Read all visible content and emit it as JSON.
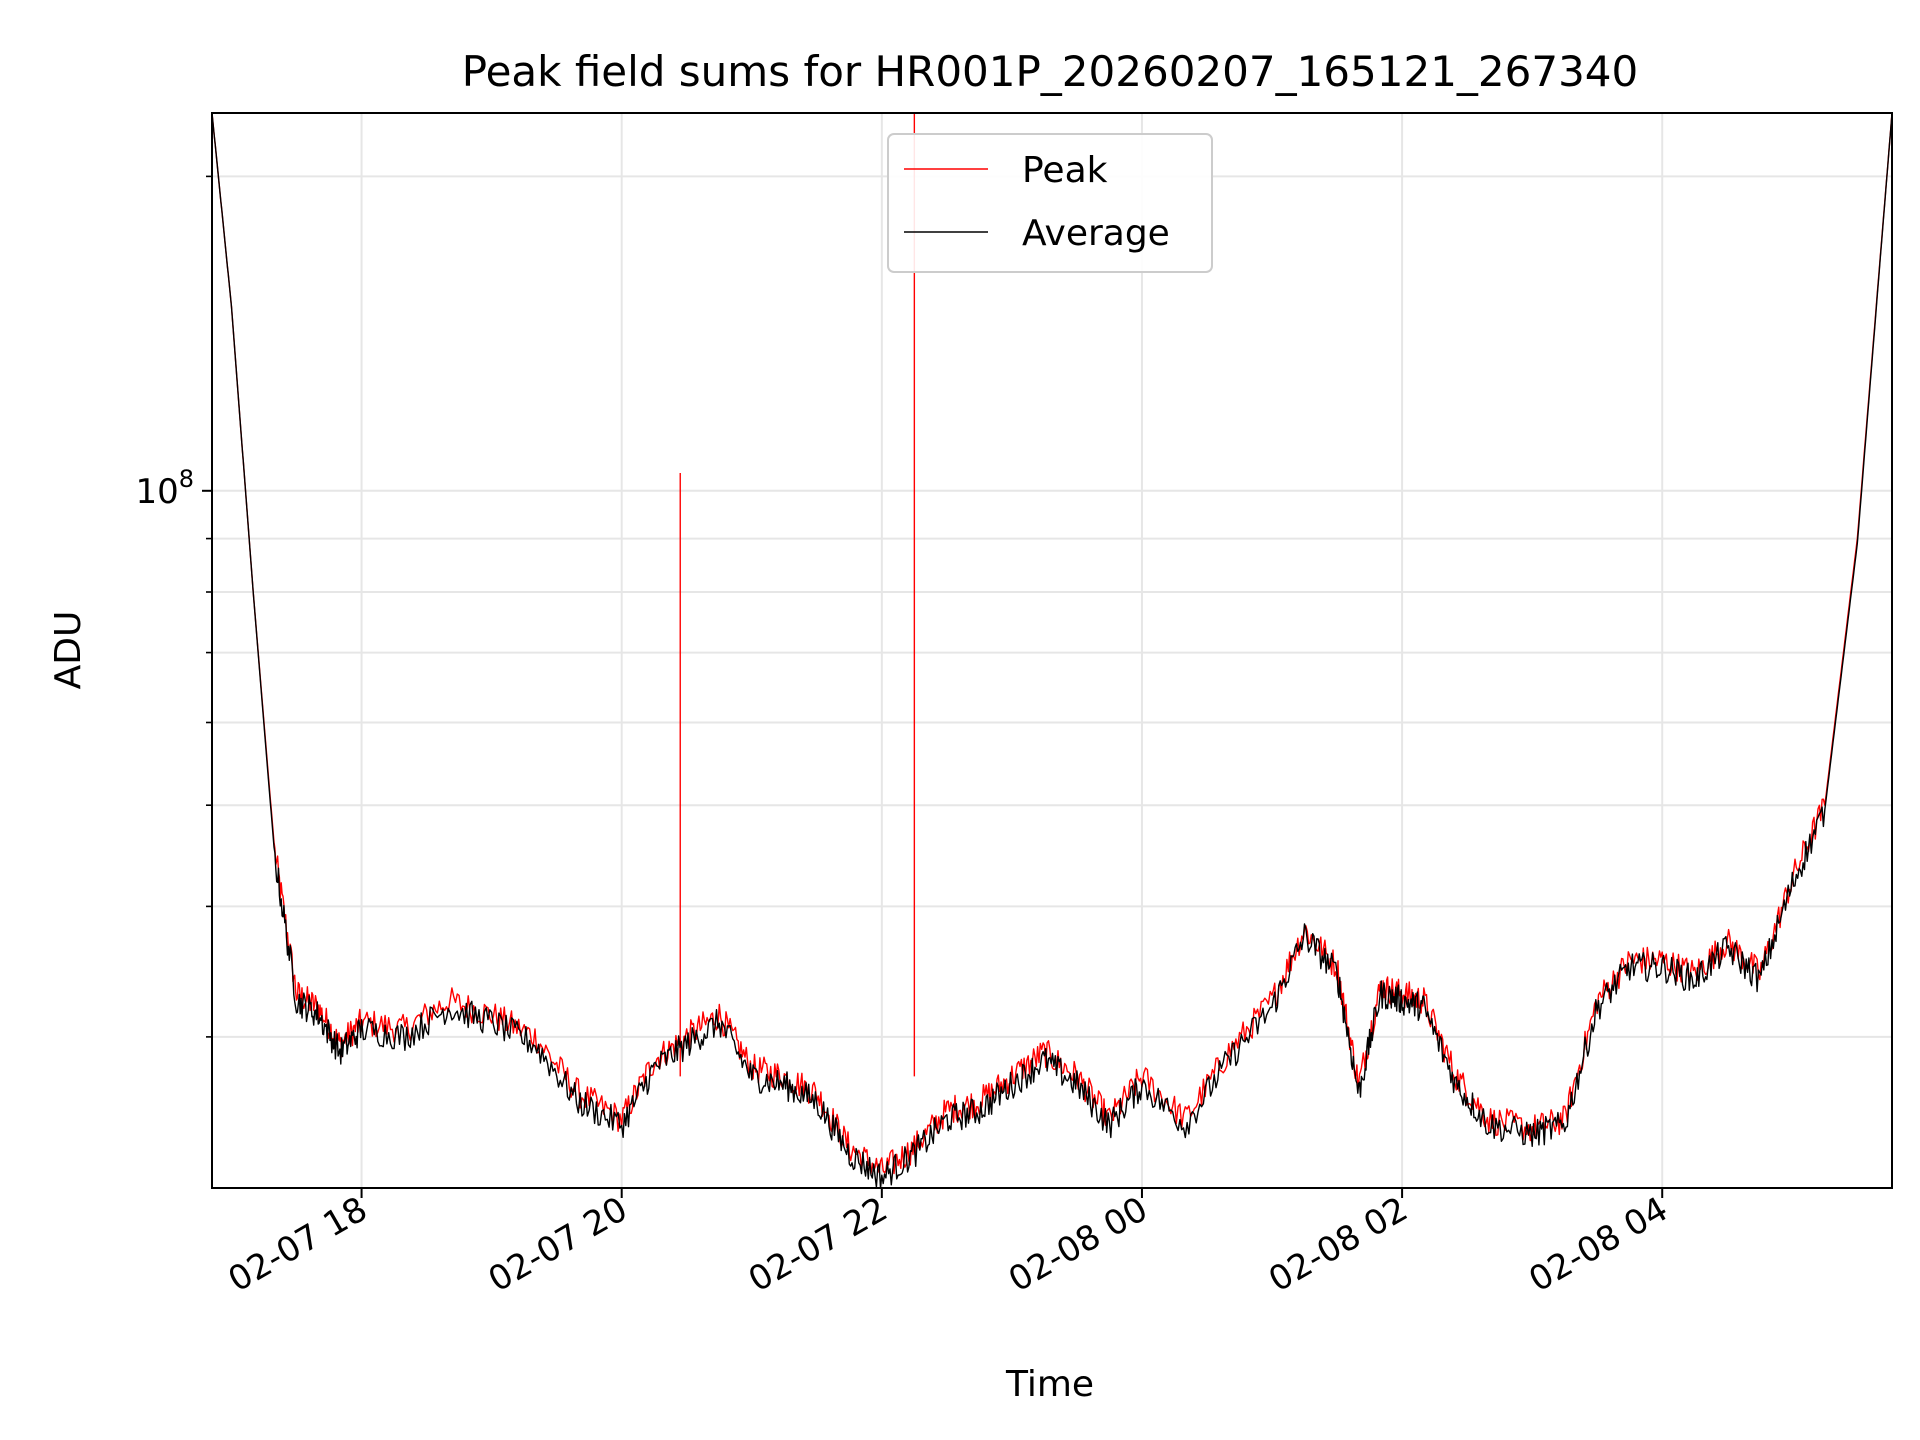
{
  "chart_data": {
    "type": "line",
    "title": "Peak field sums for HR001P_20260207_165121_267340",
    "xlabel": "Time",
    "ylabel": "ADU",
    "y_scale": "log",
    "ylim": [
      21500000,
      230000000
    ],
    "xlim": [
      "2026-02-07 16:51",
      "2026-02-08 05:46"
    ],
    "x_ticks": [
      "2026-02-07 18:00",
      "2026-02-07 20:00",
      "2026-02-07 22:00",
      "2026-02-08 00:00",
      "2026-02-08 02:00",
      "2026-02-08 04:00"
    ],
    "x_tick_labels": [
      "02-07 18",
      "02-07 20",
      "02-07 22",
      "02-08 00",
      "02-08 02",
      "02-08 04"
    ],
    "y_major_tick": 100000000,
    "y_major_tick_label": {
      "base": "10",
      "exponent": "8"
    },
    "grid": true,
    "legend_position": "top-center",
    "series": [
      {
        "name": "Peak",
        "color": "#ff0000",
        "points": [
          [
            "2026-02-07 16:51",
            230000000
          ],
          [
            "2026-02-07 17:00",
            150000000
          ],
          [
            "2026-02-07 17:10",
            80000000
          ],
          [
            "2026-02-07 17:20",
            45000000
          ],
          [
            "2026-02-07 17:30",
            33000000
          ],
          [
            "2026-02-07 17:40",
            32000000
          ],
          [
            "2026-02-07 17:50",
            29500000
          ],
          [
            "2026-02-07 18:00",
            31000000
          ],
          [
            "2026-02-07 18:20",
            30500000
          ],
          [
            "2026-02-07 18:40",
            32500000
          ],
          [
            "2026-02-07 19:00",
            31500000
          ],
          [
            "2026-02-07 19:20",
            30000000
          ],
          [
            "2026-02-07 19:40",
            26500000
          ],
          [
            "2026-02-07 20:00",
            25000000
          ],
          [
            "2026-02-07 20:15",
            28500000
          ],
          [
            "2026-02-07 20:30",
            30000000
          ],
          [
            "2026-02-07 20:45",
            31500000
          ],
          [
            "2026-02-07 21:00",
            28000000
          ],
          [
            "2026-02-07 21:15",
            27500000
          ],
          [
            "2026-02-07 21:30",
            26500000
          ],
          [
            "2026-02-07 21:45",
            23500000
          ],
          [
            "2026-02-07 22:00",
            22300000
          ],
          [
            "2026-02-07 22:15",
            23500000
          ],
          [
            "2026-02-07 22:30",
            25500000
          ],
          [
            "2026-02-07 22:45",
            26000000
          ],
          [
            "2026-02-07 23:00",
            27500000
          ],
          [
            "2026-02-07 23:15",
            29000000
          ],
          [
            "2026-02-07 23:30",
            27500000
          ],
          [
            "2026-02-07 23:45",
            25000000
          ],
          [
            "2026-02-08 00:00",
            27500000
          ],
          [
            "2026-02-08 00:20",
            25000000
          ],
          [
            "2026-02-08 00:40",
            29000000
          ],
          [
            "2026-02-08 01:00",
            32500000
          ],
          [
            "2026-02-08 01:15",
            38000000
          ],
          [
            "2026-02-08 01:30",
            35000000
          ],
          [
            "2026-02-08 01:40",
            27000000
          ],
          [
            "2026-02-08 01:50",
            33500000
          ],
          [
            "2026-02-08 02:00",
            33000000
          ],
          [
            "2026-02-08 02:10",
            32500000
          ],
          [
            "2026-02-08 02:25",
            27500000
          ],
          [
            "2026-02-08 02:40",
            25000000
          ],
          [
            "2026-02-08 03:00",
            24500000
          ],
          [
            "2026-02-08 03:15",
            25000000
          ],
          [
            "2026-02-08 03:30",
            32500000
          ],
          [
            "2026-02-08 03:45",
            35500000
          ],
          [
            "2026-02-08 04:00",
            35500000
          ],
          [
            "2026-02-08 04:15",
            34500000
          ],
          [
            "2026-02-08 04:30",
            37000000
          ],
          [
            "2026-02-08 04:45",
            34500000
          ],
          [
            "2026-02-08 05:00",
            42500000
          ],
          [
            "2026-02-08 05:15",
            50000000
          ],
          [
            "2026-02-08 05:30",
            90000000
          ],
          [
            "2026-02-08 05:46",
            230000000
          ]
        ],
        "spikes": [
          [
            "2026-02-07 20:27",
            104000000
          ],
          [
            "2026-02-07 22:15",
            230000000
          ]
        ]
      },
      {
        "name": "Average",
        "color": "#000000",
        "points": [
          [
            "2026-02-07 16:51",
            230000000
          ],
          [
            "2026-02-07 17:00",
            150000000
          ],
          [
            "2026-02-07 17:10",
            80000000
          ],
          [
            "2026-02-07 17:20",
            44500000
          ],
          [
            "2026-02-07 17:30",
            32500000
          ],
          [
            "2026-02-07 17:40",
            31500000
          ],
          [
            "2026-02-07 17:50",
            29000000
          ],
          [
            "2026-02-07 18:00",
            30500000
          ],
          [
            "2026-02-07 18:20",
            30000000
          ],
          [
            "2026-02-07 18:40",
            32000000
          ],
          [
            "2026-02-07 19:00",
            31000000
          ],
          [
            "2026-02-07 19:20",
            29500000
          ],
          [
            "2026-02-07 19:40",
            26000000
          ],
          [
            "2026-02-07 20:00",
            24700000
          ],
          [
            "2026-02-07 20:15",
            28000000
          ],
          [
            "2026-02-07 20:30",
            29500000
          ],
          [
            "2026-02-07 20:45",
            31000000
          ],
          [
            "2026-02-07 21:00",
            27500000
          ],
          [
            "2026-02-07 21:15",
            27000000
          ],
          [
            "2026-02-07 21:30",
            26000000
          ],
          [
            "2026-02-07 21:45",
            23200000
          ],
          [
            "2026-02-07 22:00",
            22000000
          ],
          [
            "2026-02-07 22:15",
            23200000
          ],
          [
            "2026-02-07 22:30",
            25000000
          ],
          [
            "2026-02-07 22:45",
            25500000
          ],
          [
            "2026-02-07 23:00",
            27000000
          ],
          [
            "2026-02-07 23:15",
            28500000
          ],
          [
            "2026-02-07 23:30",
            27000000
          ],
          [
            "2026-02-07 23:45",
            24700000
          ],
          [
            "2026-02-08 00:00",
            27000000
          ],
          [
            "2026-02-08 00:20",
            24700000
          ],
          [
            "2026-02-08 00:40",
            28500000
          ],
          [
            "2026-02-08 01:00",
            32000000
          ],
          [
            "2026-02-08 01:15",
            37500000
          ],
          [
            "2026-02-08 01:30",
            34500000
          ],
          [
            "2026-02-08 01:40",
            26500000
          ],
          [
            "2026-02-08 01:50",
            33000000
          ],
          [
            "2026-02-08 02:00",
            32500000
          ],
          [
            "2026-02-08 02:10",
            32000000
          ],
          [
            "2026-02-08 02:25",
            27000000
          ],
          [
            "2026-02-08 02:40",
            24700000
          ],
          [
            "2026-02-08 03:00",
            24200000
          ],
          [
            "2026-02-08 03:15",
            24700000
          ],
          [
            "2026-02-08 03:30",
            32000000
          ],
          [
            "2026-02-08 03:45",
            35000000
          ],
          [
            "2026-02-08 04:00",
            35000000
          ],
          [
            "2026-02-08 04:15",
            34000000
          ],
          [
            "2026-02-08 04:30",
            36500000
          ],
          [
            "2026-02-08 04:45",
            34000000
          ],
          [
            "2026-02-08 05:00",
            42000000
          ],
          [
            "2026-02-08 05:15",
            49500000
          ],
          [
            "2026-02-08 05:30",
            89000000
          ],
          [
            "2026-02-08 05:46",
            230000000
          ]
        ]
      }
    ]
  }
}
